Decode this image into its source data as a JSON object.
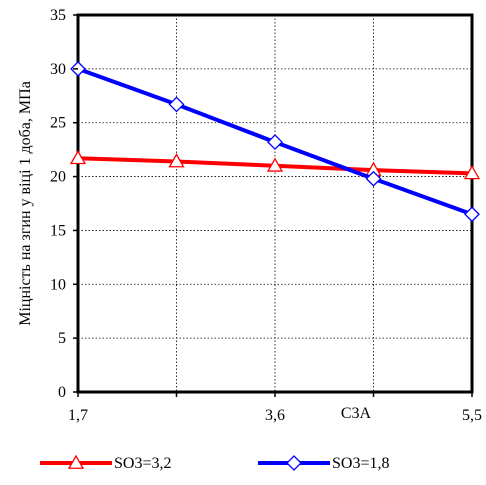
{
  "chart_data": {
    "type": "line",
    "title": "",
    "xlabel": "C3A",
    "ylabel": "Міцність на згин у віці 1 доба, МПа",
    "xlim": [
      1.7,
      5.5
    ],
    "ylim": [
      0,
      35
    ],
    "x_tick_labels": [
      {
        "x": 1.7,
        "label": "1,7"
      },
      {
        "x": 3.6,
        "label": "3,6"
      },
      {
        "x": 5.5,
        "label": "5,5"
      }
    ],
    "x_gridlines": [
      1.7,
      2.65,
      3.6,
      4.55,
      5.5
    ],
    "y_ticks": [
      0,
      5,
      10,
      15,
      20,
      25,
      30,
      35
    ],
    "grid": true,
    "legend_position": "bottom",
    "series": [
      {
        "name": "SO3=3,2",
        "color": "#ff0000",
        "marker": "triangle-open",
        "x": [
          1.7,
          2.65,
          3.6,
          4.55,
          5.5
        ],
        "y": [
          21.7,
          21.4,
          21.0,
          20.6,
          20.3
        ]
      },
      {
        "name": "SO3=1,8",
        "color": "#0000ff",
        "marker": "diamond-open",
        "x": [
          1.7,
          2.65,
          3.6,
          4.55,
          5.5
        ],
        "y": [
          30.0,
          26.7,
          23.2,
          19.8,
          16.5
        ]
      }
    ]
  }
}
